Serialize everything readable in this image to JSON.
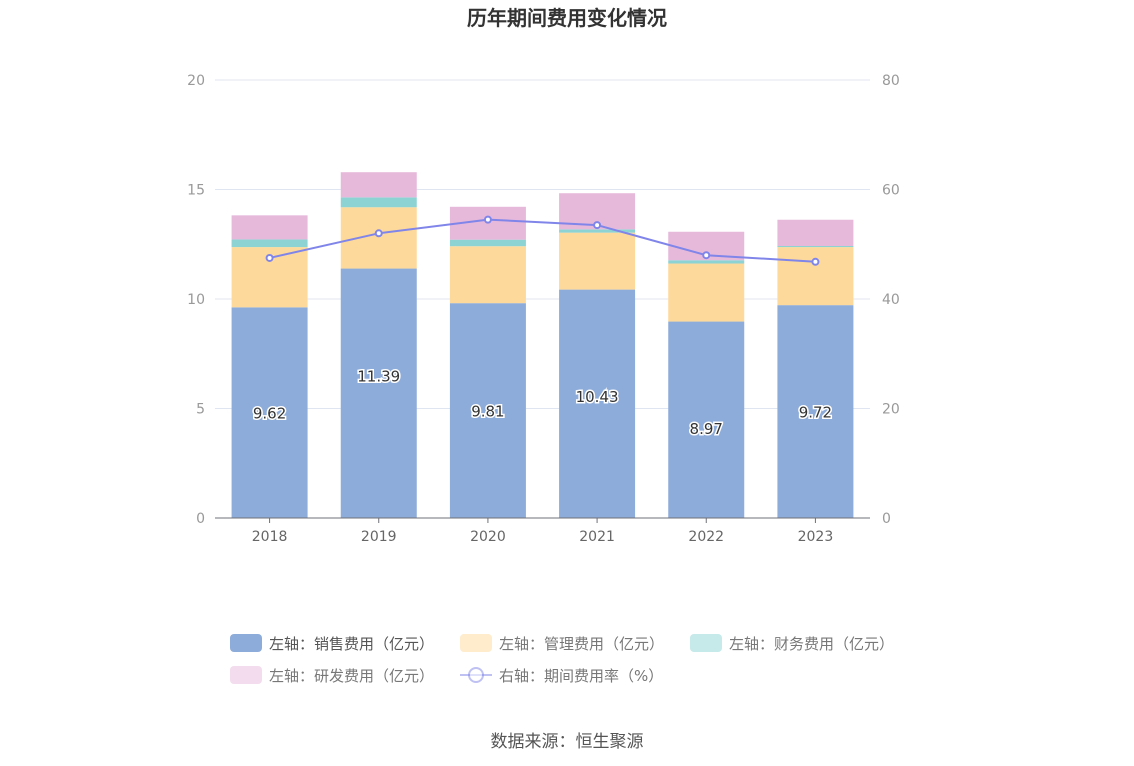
{
  "chart_data": {
    "type": "bar",
    "title": "历年期间费用变化情况",
    "categories": [
      "2018",
      "2019",
      "2020",
      "2021",
      "2022",
      "2023"
    ],
    "stacked": true,
    "series": [
      {
        "name": "左轴：销售费用（亿元）",
        "axis": "left",
        "type": "bar",
        "color": "#8eacd9",
        "values": [
          9.62,
          11.39,
          9.81,
          10.43,
          8.97,
          9.72
        ],
        "labels": [
          "9.62",
          "11.39",
          "9.81",
          "10.43",
          "8.97",
          "9.72"
        ]
      },
      {
        "name": "左轴：管理费用（亿元）",
        "axis": "left",
        "type": "bar",
        "color": "#fdd99b",
        "values": [
          2.75,
          2.8,
          2.6,
          2.6,
          2.65,
          2.65
        ]
      },
      {
        "name": "左轴：财务费用（亿元）",
        "axis": "left",
        "type": "bar",
        "color": "#8dd3d4",
        "values": [
          0.35,
          0.45,
          0.3,
          0.15,
          0.15,
          0.05
        ]
      },
      {
        "name": "左轴：研发费用（亿元）",
        "axis": "left",
        "type": "bar",
        "color": "#e6b9db",
        "values": [
          1.1,
          1.15,
          1.5,
          1.65,
          1.3,
          1.2
        ]
      },
      {
        "name": "右轴：期间费用率（%）",
        "axis": "right",
        "type": "line",
        "color": "#8085e9",
        "values": [
          47.5,
          52.0,
          54.5,
          53.5,
          48.0,
          46.8
        ]
      }
    ],
    "y_left": {
      "min": 0,
      "max": 20,
      "ticks": [
        "0",
        "5",
        "10",
        "15",
        "20"
      ]
    },
    "y_right": {
      "min": 0,
      "max": 80,
      "ticks": [
        "0",
        "20",
        "40",
        "60",
        "80"
      ]
    },
    "grid": true,
    "legend_position": "bottom"
  },
  "source": "数据来源：恒生聚源"
}
